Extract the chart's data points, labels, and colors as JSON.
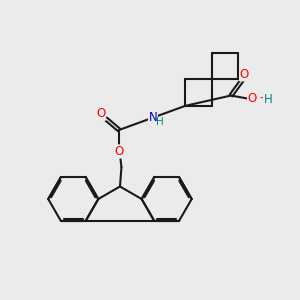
{
  "background_color": "#ebebeb",
  "line_color": "#1a1a1a",
  "bond_width": 1.5,
  "atom_colors": {
    "O": "#ff0000",
    "N": "#0000cc",
    "H": "#008888"
  },
  "font_size": 8.5,
  "figsize": [
    3.0,
    3.0
  ],
  "dpi": 100
}
